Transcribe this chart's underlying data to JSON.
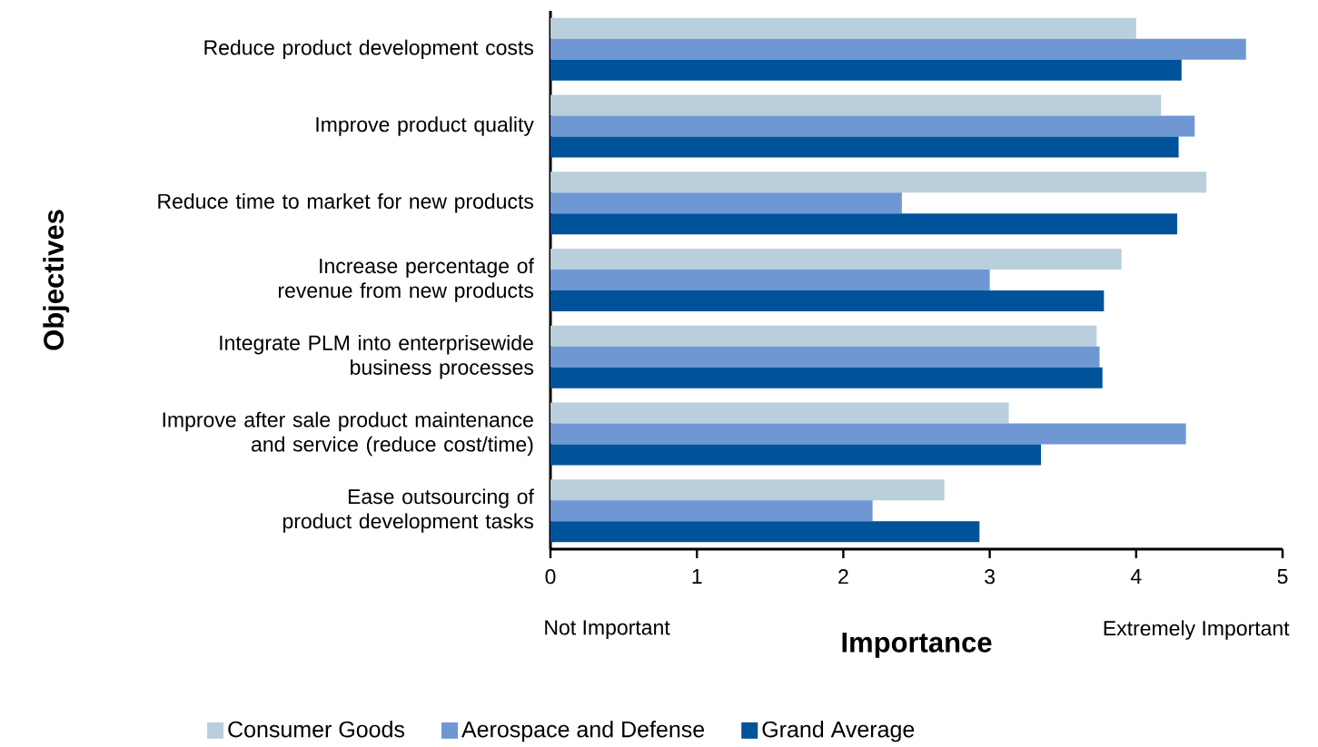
{
  "chart_data": {
    "type": "bar",
    "orientation": "horizontal",
    "xlabel": "Importance",
    "ylabel": "Objectives",
    "categories": [
      "Reduce product development costs",
      "Improve product quality",
      "Reduce time to market for new products",
      "Increase percentage of revenue from new products",
      "Integrate PLM into enterprisewide business processes",
      "Improve after sale product maintenance and service (reduce cost/time)",
      "Ease outsourcing of product development tasks"
    ],
    "series": [
      {
        "name": "Consumer Goods",
        "color": "#b9cfdc",
        "values": [
          4.0,
          4.17,
          4.48,
          3.9,
          3.73,
          3.13,
          2.69
        ]
      },
      {
        "name": "Aerospace and Defense",
        "color": "#6f97d4",
        "values": [
          4.75,
          4.4,
          2.4,
          3.0,
          3.75,
          4.34,
          2.2
        ]
      },
      {
        "name": "Grand Average",
        "color": "#00529b",
        "values": [
          4.31,
          4.29,
          4.28,
          3.78,
          3.77,
          3.35,
          2.93
        ]
      }
    ],
    "xlim": [
      0,
      5
    ],
    "xticks": [
      0,
      1,
      2,
      3,
      4,
      5
    ],
    "grid": false,
    "legend": "bottom",
    "annotations": [
      "Not Important",
      "Extremely Important"
    ]
  }
}
